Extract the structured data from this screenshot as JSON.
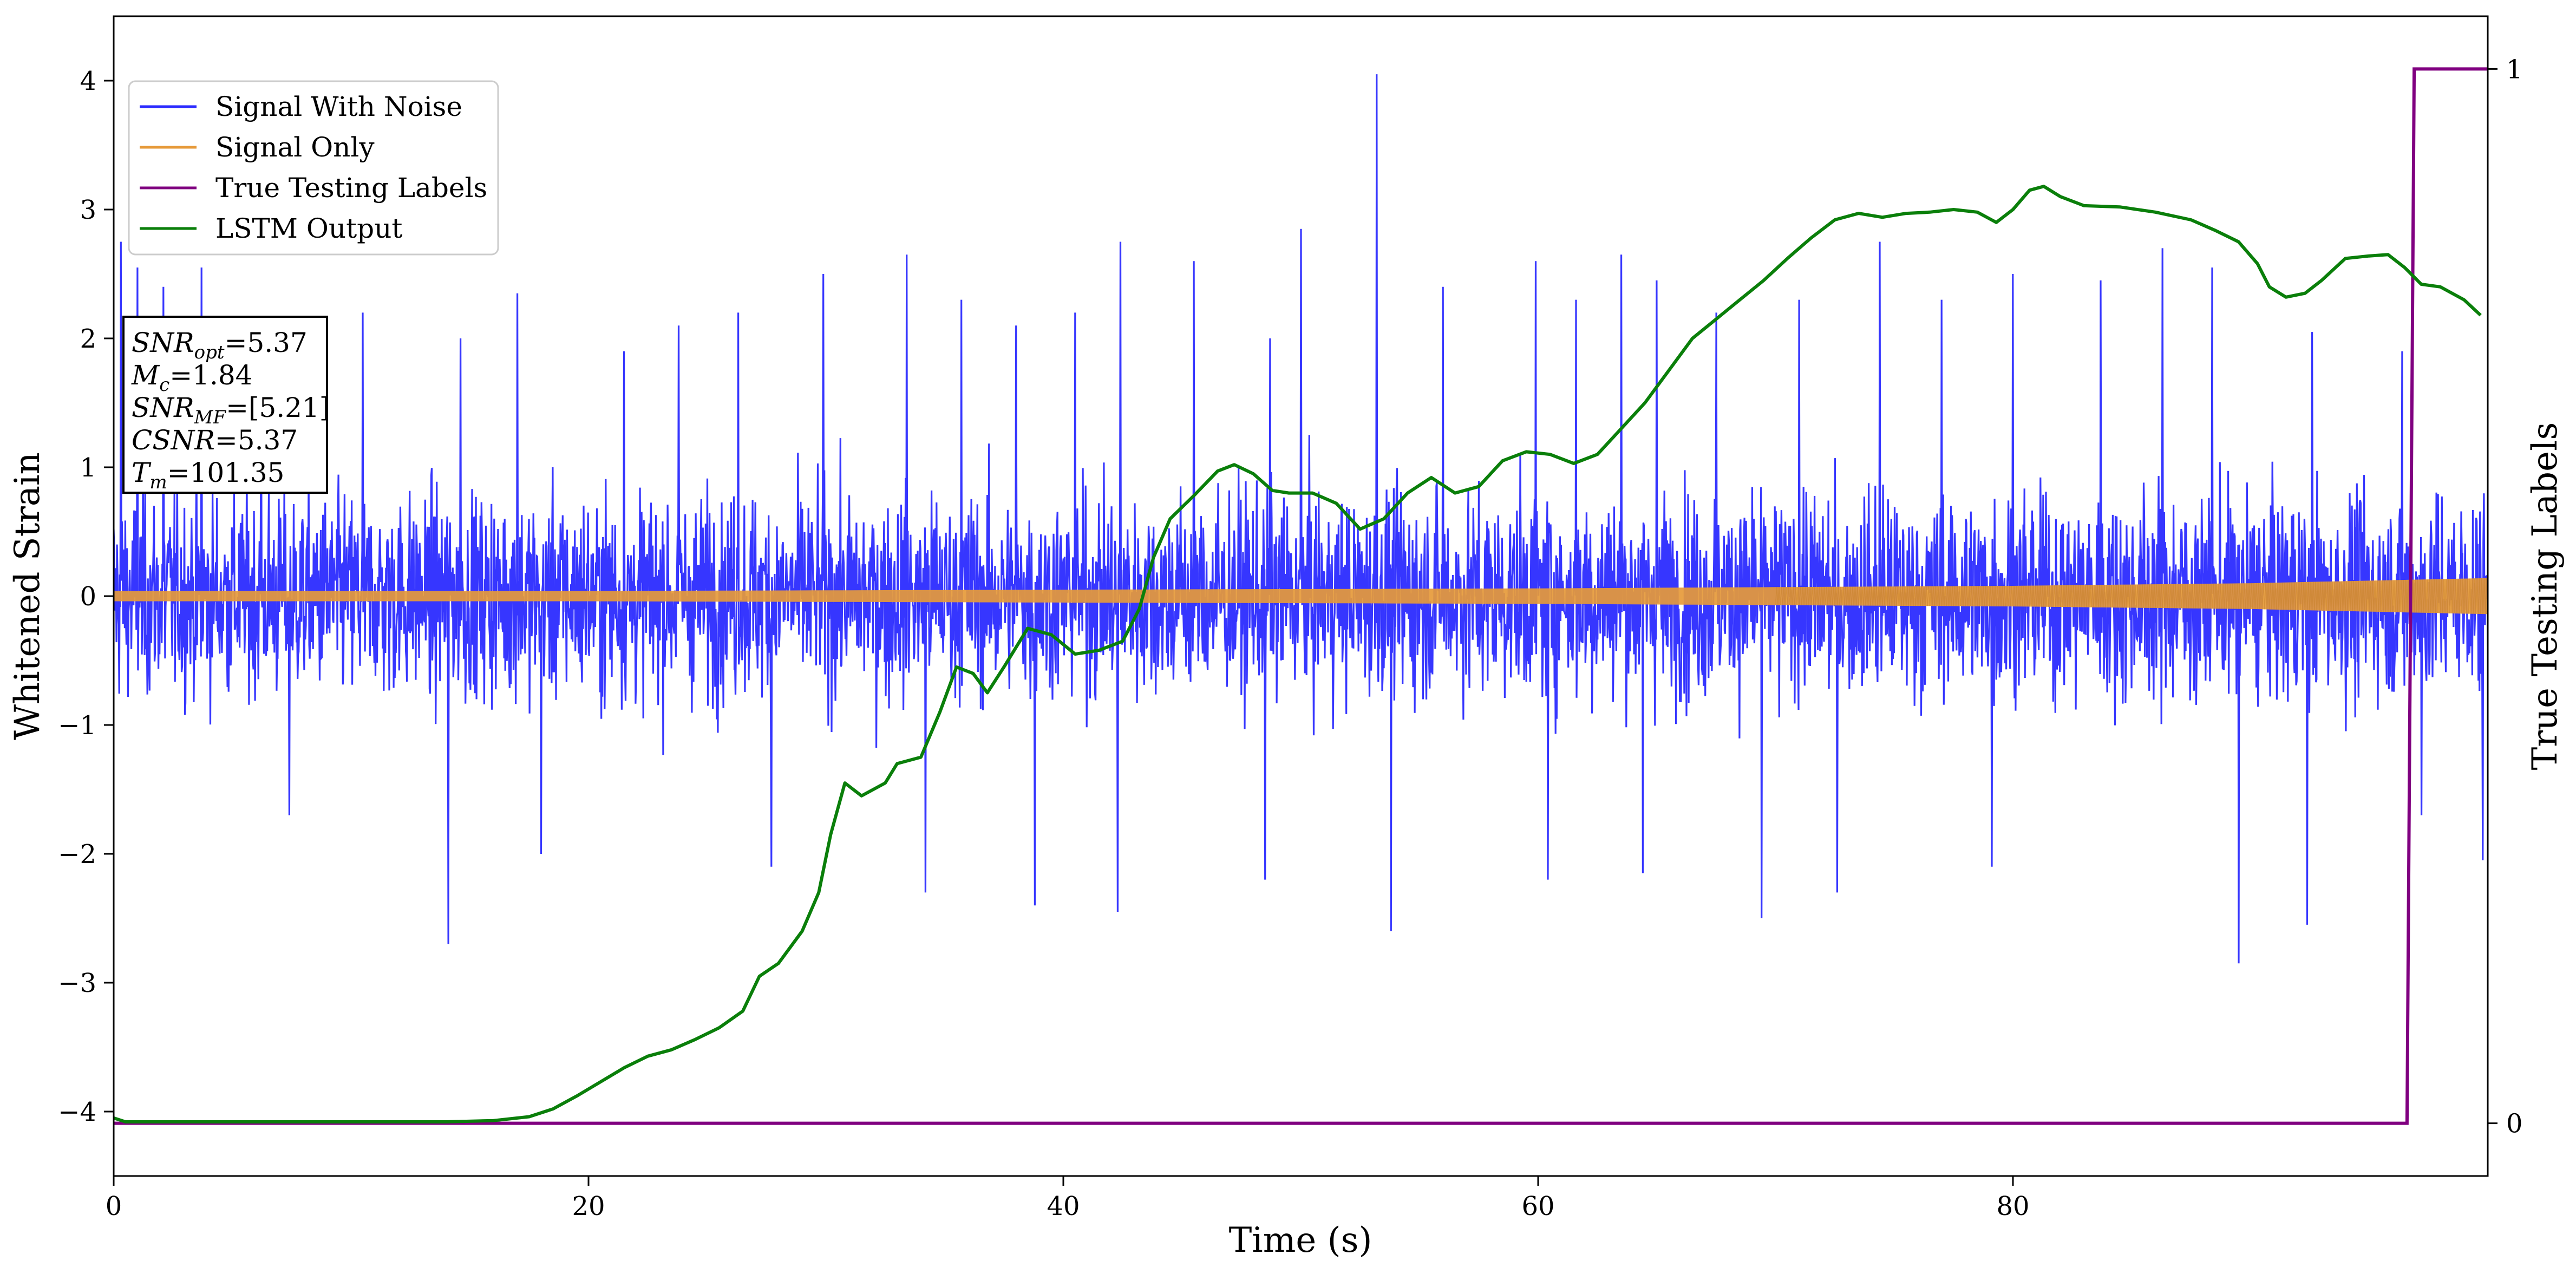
{
  "chart_data": {
    "type": "line",
    "title": "",
    "xlabel": "Time (s)",
    "ylabel": "Whitened Strain",
    "ylabel_right": "True Testing Labels",
    "xlim": [
      0,
      100
    ],
    "ylim": [
      -4.5,
      4.5
    ],
    "ylim_right": [
      -0.05,
      1.05
    ],
    "x_ticks": [
      0,
      20,
      40,
      60,
      80
    ],
    "y_ticks": [
      -4,
      -3,
      -2,
      -1,
      0,
      1,
      2,
      3,
      4
    ],
    "y_ticks_right": [
      0,
      1
    ],
    "grid": false,
    "legend_position": "top-left",
    "colors": {
      "noise": "#2b2bff",
      "signal": "#e69a3a",
      "labels": "#800080",
      "lstm": "#0a7f0a"
    },
    "series": [
      {
        "name": "Signal With Noise",
        "axis": "left",
        "description_stats": {
          "x_start": 0,
          "x_end": 100,
          "baseline_abs_max": 1.6,
          "peak_max": 4.05,
          "peak_min": -2.85
        },
        "spikes": [
          [
            0.3,
            2.75
          ],
          [
            1.0,
            2.55
          ],
          [
            2.1,
            2.4
          ],
          [
            3.7,
            2.55
          ],
          [
            6.2,
            1.8
          ],
          [
            10.5,
            2.2
          ],
          [
            14.6,
            2.0
          ],
          [
            17.0,
            2.35
          ],
          [
            21.5,
            1.9
          ],
          [
            23.8,
            2.1
          ],
          [
            26.3,
            2.2
          ],
          [
            29.9,
            2.5
          ],
          [
            33.4,
            2.65
          ],
          [
            35.7,
            2.3
          ],
          [
            38.0,
            2.1
          ],
          [
            40.5,
            2.2
          ],
          [
            42.4,
            2.75
          ],
          [
            45.5,
            2.6
          ],
          [
            48.7,
            2.0
          ],
          [
            50.0,
            2.85
          ],
          [
            53.2,
            4.05
          ],
          [
            56.0,
            2.4
          ],
          [
            59.9,
            2.6
          ],
          [
            61.6,
            2.3
          ],
          [
            63.5,
            2.65
          ],
          [
            65.0,
            2.45
          ],
          [
            67.5,
            2.2
          ],
          [
            71.0,
            2.3
          ],
          [
            74.4,
            2.75
          ],
          [
            77.0,
            2.3
          ],
          [
            80.0,
            2.5
          ],
          [
            83.7,
            2.45
          ],
          [
            86.3,
            2.7
          ],
          [
            88.4,
            2.55
          ],
          [
            92.6,
            2.05
          ],
          [
            96.4,
            1.9
          ],
          [
            7.4,
            -1.7
          ],
          [
            14.1,
            -2.7
          ],
          [
            18.0,
            -2.0
          ],
          [
            27.7,
            -2.1
          ],
          [
            34.2,
            -2.3
          ],
          [
            38.8,
            -2.4
          ],
          [
            42.3,
            -2.45
          ],
          [
            48.5,
            -2.2
          ],
          [
            53.8,
            -2.6
          ],
          [
            60.4,
            -2.2
          ],
          [
            64.4,
            -2.15
          ],
          [
            69.4,
            -2.5
          ],
          [
            72.6,
            -2.3
          ],
          [
            79.1,
            -2.1
          ],
          [
            89.5,
            -2.85
          ],
          [
            92.4,
            -2.55
          ],
          [
            97.2,
            -1.7
          ],
          [
            99.8,
            -2.05
          ]
        ]
      },
      {
        "name": "Signal Only",
        "axis": "left",
        "envelope": [
          [
            0,
            0.04
          ],
          [
            20,
            0.04
          ],
          [
            40,
            0.05
          ],
          [
            60,
            0.06
          ],
          [
            80,
            0.08
          ],
          [
            90,
            0.1
          ],
          [
            100,
            0.14
          ]
        ]
      },
      {
        "name": "True Testing Labels",
        "axis": "right",
        "points": [
          [
            0,
            0
          ],
          [
            96.6,
            0
          ],
          [
            96.9,
            1
          ],
          [
            100,
            1
          ]
        ]
      },
      {
        "name": "LSTM Output",
        "axis": "left",
        "points": [
          [
            0,
            -4.05
          ],
          [
            0.5,
            -4.08
          ],
          [
            5,
            -4.08
          ],
          [
            10,
            -4.08
          ],
          [
            14,
            -4.08
          ],
          [
            16,
            -4.07
          ],
          [
            17.5,
            -4.04
          ],
          [
            18.5,
            -3.98
          ],
          [
            19.5,
            -3.88
          ],
          [
            20.5,
            -3.77
          ],
          [
            21.5,
            -3.66
          ],
          [
            22.5,
            -3.57
          ],
          [
            23.5,
            -3.52
          ],
          [
            24.5,
            -3.44
          ],
          [
            25.5,
            -3.35
          ],
          [
            26.5,
            -3.22
          ],
          [
            27.2,
            -2.95
          ],
          [
            28,
            -2.85
          ],
          [
            29,
            -2.6
          ],
          [
            29.7,
            -2.3
          ],
          [
            30.2,
            -1.85
          ],
          [
            30.8,
            -1.45
          ],
          [
            31.5,
            -1.55
          ],
          [
            32.5,
            -1.45
          ],
          [
            33,
            -1.3
          ],
          [
            34,
            -1.25
          ],
          [
            34.8,
            -0.9
          ],
          [
            35.5,
            -0.55
          ],
          [
            36.2,
            -0.6
          ],
          [
            36.8,
            -0.75
          ],
          [
            37.5,
            -0.55
          ],
          [
            38.5,
            -0.25
          ],
          [
            39.5,
            -0.3
          ],
          [
            40.5,
            -0.45
          ],
          [
            41.5,
            -0.42
          ],
          [
            42.5,
            -0.35
          ],
          [
            43.2,
            -0.1
          ],
          [
            43.8,
            0.3
          ],
          [
            44.5,
            0.6
          ],
          [
            45.5,
            0.78
          ],
          [
            46.5,
            0.97
          ],
          [
            47.2,
            1.02
          ],
          [
            48,
            0.95
          ],
          [
            48.8,
            0.82
          ],
          [
            49.5,
            0.8
          ],
          [
            50.5,
            0.8
          ],
          [
            51.5,
            0.72
          ],
          [
            52.5,
            0.52
          ],
          [
            53.5,
            0.6
          ],
          [
            54.5,
            0.8
          ],
          [
            55.5,
            0.92
          ],
          [
            56.5,
            0.8
          ],
          [
            57.5,
            0.85
          ],
          [
            58.5,
            1.05
          ],
          [
            59.5,
            1.12
          ],
          [
            60.5,
            1.1
          ],
          [
            61.5,
            1.03
          ],
          [
            62.5,
            1.1
          ],
          [
            63.5,
            1.3
          ],
          [
            64.5,
            1.5
          ],
          [
            65.5,
            1.75
          ],
          [
            66.5,
            2.0
          ],
          [
            67.5,
            2.15
          ],
          [
            68.5,
            2.3
          ],
          [
            69.5,
            2.45
          ],
          [
            70.5,
            2.62
          ],
          [
            71.5,
            2.78
          ],
          [
            72.5,
            2.92
          ],
          [
            73.5,
            2.97
          ],
          [
            74.5,
            2.94
          ],
          [
            75.5,
            2.97
          ],
          [
            76.5,
            2.98
          ],
          [
            77.5,
            3.0
          ],
          [
            78.5,
            2.98
          ],
          [
            79.3,
            2.9
          ],
          [
            80,
            3.0
          ],
          [
            80.7,
            3.15
          ],
          [
            81.3,
            3.18
          ],
          [
            82,
            3.1
          ],
          [
            83,
            3.03
          ],
          [
            84.5,
            3.02
          ],
          [
            86,
            2.98
          ],
          [
            87.5,
            2.92
          ],
          [
            88.5,
            2.84
          ],
          [
            89.5,
            2.75
          ],
          [
            90.3,
            2.58
          ],
          [
            90.8,
            2.4
          ],
          [
            91.5,
            2.32
          ],
          [
            92.3,
            2.35
          ],
          [
            93,
            2.45
          ],
          [
            94,
            2.62
          ],
          [
            95,
            2.64
          ],
          [
            95.8,
            2.65
          ],
          [
            96.5,
            2.55
          ],
          [
            97.2,
            2.42
          ],
          [
            98,
            2.4
          ],
          [
            99,
            2.3
          ],
          [
            99.7,
            2.18
          ]
        ]
      }
    ],
    "annotation_lines": [
      {
        "pre": "SNR",
        "sub": "opt",
        "post": "=5.37"
      },
      {
        "pre": "M",
        "sub": "c",
        "post": "=1.84"
      },
      {
        "pre": "SNR",
        "sub": "MF",
        "post": "=[5.21]"
      },
      {
        "pre": "CSNR",
        "sub": "",
        "post": "=5.37"
      },
      {
        "pre": "T",
        "sub": "m",
        "post": "=101.35"
      }
    ]
  }
}
